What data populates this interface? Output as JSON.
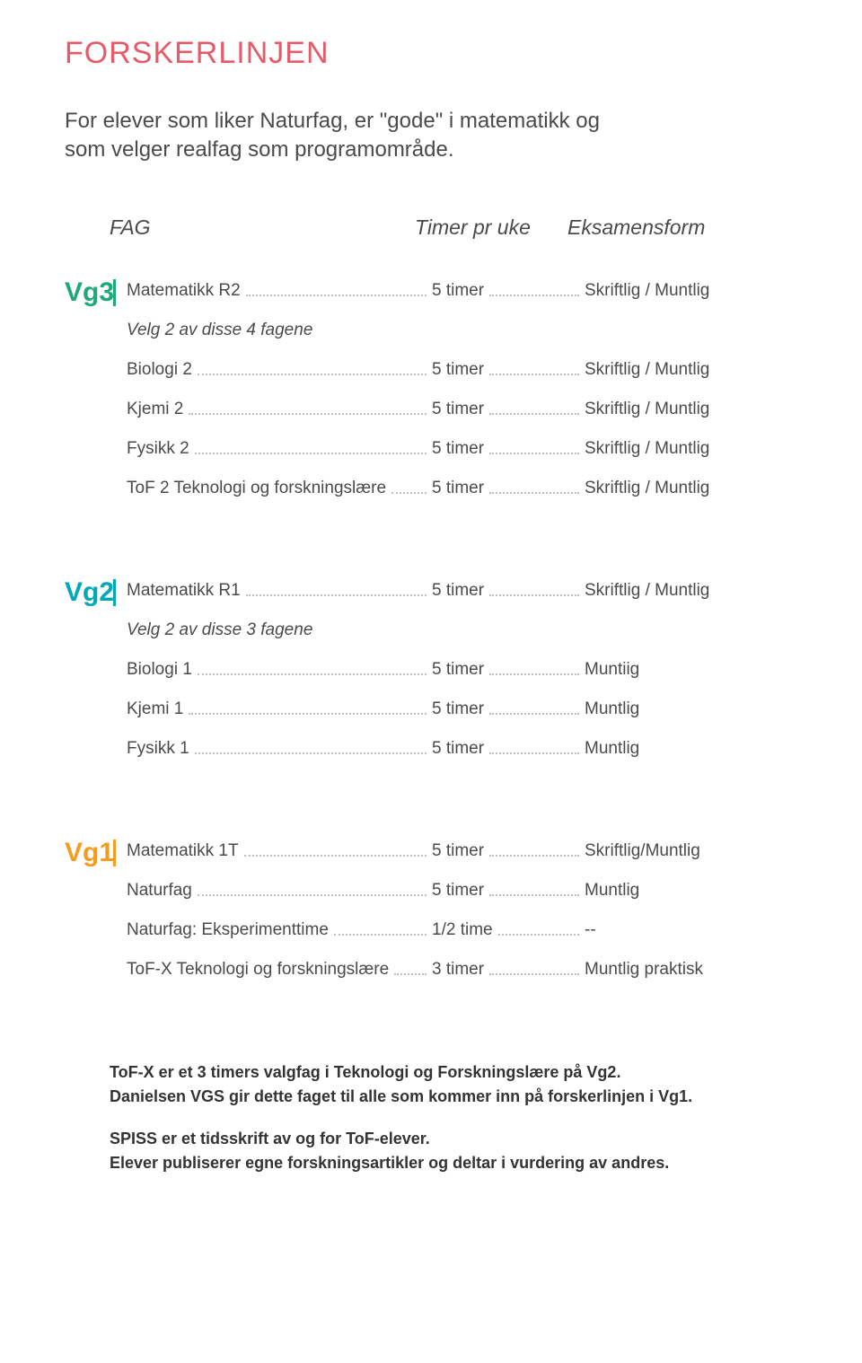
{
  "colors": {
    "title": "#e55b6a",
    "vg3": "#1fa97a",
    "vg2": "#00a9b7",
    "vg1": "#f39c1f",
    "text": "#4a4a4a",
    "dots": "#bfbfbf",
    "footer": "#333333"
  },
  "title": "FORSKERLINJEN",
  "intro": "For elever som liker Naturfag, er \"gode\" i matematikk og som velger realfag som programområde.",
  "header": {
    "fag": "FAG",
    "timer": "Timer pr uke",
    "eks": "Eksamensform"
  },
  "groups": [
    {
      "tag": "Vg3",
      "color_key": "vg3",
      "rows": [
        {
          "fag": "Matematikk R2",
          "timer": "5 timer",
          "eks": "Skriftlig / Muntlig"
        },
        {
          "fag": "Velg 2 av disse 4 fagene",
          "subhead": true
        },
        {
          "fag": "Biologi 2",
          "timer": "5 timer",
          "eks": "Skriftlig / Muntlig"
        },
        {
          "fag": "Kjemi 2",
          "timer": "5 timer",
          "eks": "Skriftlig / Muntlig"
        },
        {
          "fag": "Fysikk 2",
          "timer": "5 timer",
          "eks": "Skriftlig / Muntlig"
        },
        {
          "fag": "ToF 2 Teknologi og forskningslære",
          "timer": "5 timer",
          "eks": "Skriftlig / Muntlig"
        }
      ]
    },
    {
      "tag": "Vg2",
      "color_key": "vg2",
      "rows": [
        {
          "fag": "Matematikk R1",
          "timer": "5 timer",
          "eks": "Skriftlig / Muntlig"
        },
        {
          "fag": "Velg 2 av disse 3 fagene",
          "subhead": true
        },
        {
          "fag": "Biologi 1",
          "timer": "5 timer",
          "eks": "Muntiig"
        },
        {
          "fag": "Kjemi 1",
          "timer": "5 timer",
          "eks": "Muntlig"
        },
        {
          "fag": "Fysikk 1",
          "timer": "5 timer",
          "eks": "Muntlig"
        }
      ]
    },
    {
      "tag": "Vg1",
      "color_key": "vg1",
      "rows": [
        {
          "fag": "Matematikk 1T",
          "timer": "5 timer",
          "eks": "Skriftlig/Muntlig"
        },
        {
          "fag": "Naturfag",
          "timer": "5 timer",
          "eks": "Muntlig"
        },
        {
          "fag": "Naturfag: Eksperimenttime",
          "timer": "1/2 time",
          "eks": "--"
        },
        {
          "fag": "ToF-X Teknologi og forskningslære",
          "timer": "3 timer",
          "eks": "Muntlig praktisk"
        }
      ]
    }
  ],
  "footer": {
    "p1a": "ToF-X er et 3 timers valgfag i Teknologi og Forskningslære på Vg2.",
    "p1b": "Danielsen VGS gir dette faget til alle som kommer inn på forskerlinjen i Vg1.",
    "p2a": "SPISS er et tidsskrift av og for ToF-elever.",
    "p2b": "Elever publiserer egne forskningsartikler og deltar i vurdering av andres."
  }
}
